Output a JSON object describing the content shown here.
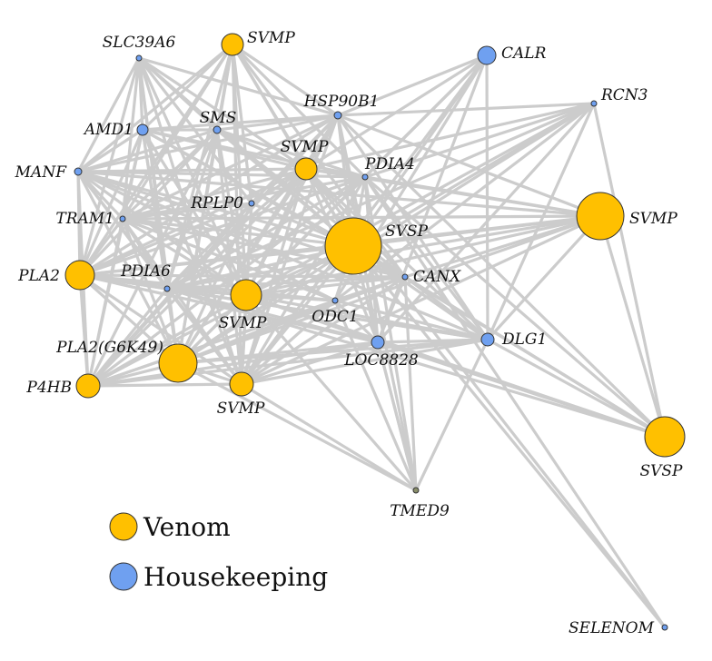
{
  "colors": {
    "venom": "#ffc000",
    "housekeeping": "#6fa0f0",
    "other": "#8a8f6a",
    "edge": "#cccccc"
  },
  "legend": [
    {
      "label": "Venom",
      "group": "venom"
    },
    {
      "label": "Housekeeping",
      "group": "housekeeping"
    }
  ],
  "nodes": [
    {
      "id": "SLC39A6",
      "label": "SLC39A6",
      "group": "housekeeping"
    },
    {
      "id": "SVMP_top",
      "label": "SVMP",
      "group": "venom"
    },
    {
      "id": "CALR",
      "label": "CALR",
      "group": "housekeeping"
    },
    {
      "id": "RCN3",
      "label": "RCN3",
      "group": "housekeeping"
    },
    {
      "id": "HSP90B1",
      "label": "HSP90B1",
      "group": "housekeeping"
    },
    {
      "id": "AMD1",
      "label": "AMD1",
      "group": "housekeeping"
    },
    {
      "id": "SMS",
      "label": "SMS",
      "group": "housekeeping"
    },
    {
      "id": "SVMP_mid",
      "label": "SVMP",
      "group": "venom"
    },
    {
      "id": "PDIA4",
      "label": "PDIA4",
      "group": "housekeeping"
    },
    {
      "id": "MANF",
      "label": "MANF",
      "group": "housekeeping"
    },
    {
      "id": "RPLP0",
      "label": "RPLP0",
      "group": "housekeeping"
    },
    {
      "id": "TRAM1",
      "label": "TRAM1",
      "group": "housekeeping"
    },
    {
      "id": "SVSP_big",
      "label": "SVSP",
      "group": "venom"
    },
    {
      "id": "SVMP_right",
      "label": "SVMP",
      "group": "venom"
    },
    {
      "id": "PLA2",
      "label": "PLA2",
      "group": "venom"
    },
    {
      "id": "PDIA6",
      "label": "PDIA6",
      "group": "housekeeping"
    },
    {
      "id": "CANX",
      "label": "CANX",
      "group": "housekeeping"
    },
    {
      "id": "SVMP_center",
      "label": "SVMP",
      "group": "venom"
    },
    {
      "id": "ODC1",
      "label": "ODC1",
      "group": "housekeeping"
    },
    {
      "id": "PLA2G6K49",
      "label": "PLA2(G6K49)",
      "group": "venom"
    },
    {
      "id": "LOC8828",
      "label": "LOC8828",
      "group": "housekeeping"
    },
    {
      "id": "DLG1",
      "label": "DLG1",
      "group": "housekeeping"
    },
    {
      "id": "P4HB",
      "label": "P4HB",
      "group": "venom"
    },
    {
      "id": "SVMP_low",
      "label": "SVMP",
      "group": "venom"
    },
    {
      "id": "SVSP_right",
      "label": "SVSP",
      "group": "venom"
    },
    {
      "id": "TMED9",
      "label": "TMED9",
      "group": "other"
    },
    {
      "id": "SELENOM",
      "label": "SELENOM",
      "group": "housekeeping"
    }
  ],
  "edges": [
    [
      "SLC39A6",
      "AMD1"
    ],
    [
      "SLC39A6",
      "SMS"
    ],
    [
      "SLC39A6",
      "SVMP_mid"
    ],
    [
      "SLC39A6",
      "MANF"
    ],
    [
      "SLC39A6",
      "TRAM1"
    ],
    [
      "SLC39A6",
      "PLA2"
    ],
    [
      "SLC39A6",
      "PDIA6"
    ],
    [
      "SLC39A6",
      "SVMP_center"
    ],
    [
      "SLC39A6",
      "SVSP_big"
    ],
    [
      "SLC39A6",
      "HSP90B1"
    ],
    [
      "SLC39A6",
      "PLA2G6K49"
    ],
    [
      "SLC39A6",
      "RPLP0"
    ],
    [
      "SLC39A6",
      "SVMP_low"
    ],
    [
      "SVMP_top",
      "AMD1"
    ],
    [
      "SVMP_top",
      "SMS"
    ],
    [
      "SVMP_top",
      "SVMP_mid"
    ],
    [
      "SVMP_top",
      "MANF"
    ],
    [
      "SVMP_top",
      "TRAM1"
    ],
    [
      "SVMP_top",
      "PLA2"
    ],
    [
      "SVMP_top",
      "PDIA6"
    ],
    [
      "SVMP_top",
      "SVMP_center"
    ],
    [
      "SVMP_top",
      "SVSP_big"
    ],
    [
      "SVMP_top",
      "HSP90B1"
    ],
    [
      "SVMP_top",
      "RPLP0"
    ],
    [
      "SVMP_top",
      "PDIA4"
    ],
    [
      "SVMP_top",
      "PLA2G6K49"
    ],
    [
      "SVMP_top",
      "SVMP_low"
    ],
    [
      "SVMP_top",
      "CANX"
    ],
    [
      "CALR",
      "SVMP_mid"
    ],
    [
      "CALR",
      "SVSP_big"
    ],
    [
      "CALR",
      "PDIA4"
    ],
    [
      "CALR",
      "DLG1"
    ],
    [
      "CALR",
      "SVMP_center"
    ],
    [
      "CALR",
      "PLA2G6K49"
    ],
    [
      "CALR",
      "SVMP_low"
    ],
    [
      "CALR",
      "HSP90B1"
    ],
    [
      "CALR",
      "LOC8828"
    ],
    [
      "CALR",
      "ODC1"
    ],
    [
      "RCN3",
      "SVSP_big"
    ],
    [
      "RCN3",
      "SVMP_mid"
    ],
    [
      "RCN3",
      "PDIA4"
    ],
    [
      "RCN3",
      "DLG1"
    ],
    [
      "RCN3",
      "SVMP_center"
    ],
    [
      "RCN3",
      "PDIA6"
    ],
    [
      "RCN3",
      "HSP90B1"
    ],
    [
      "RCN3",
      "PLA2G6K49"
    ],
    [
      "RCN3",
      "ODC1"
    ],
    [
      "RCN3",
      "LOC8828"
    ],
    [
      "HSP90B1",
      "AMD1"
    ],
    [
      "HSP90B1",
      "SMS"
    ],
    [
      "HSP90B1",
      "SVMP_mid"
    ],
    [
      "HSP90B1",
      "MANF"
    ],
    [
      "HSP90B1",
      "TRAM1"
    ],
    [
      "HSP90B1",
      "PLA2"
    ],
    [
      "HSP90B1",
      "SVSP_big"
    ],
    [
      "HSP90B1",
      "SVMP_center"
    ],
    [
      "HSP90B1",
      "PLA2G6K49"
    ],
    [
      "HSP90B1",
      "PDIA6"
    ],
    [
      "HSP90B1",
      "SVMP_low"
    ],
    [
      "HSP90B1",
      "P4HB"
    ],
    [
      "HSP90B1",
      "SVMP_right"
    ],
    [
      "HSP90B1",
      "LOC8828"
    ],
    [
      "HSP90B1",
      "DLG1"
    ],
    [
      "HSP90B1",
      "TMED9"
    ],
    [
      "AMD1",
      "SMS"
    ],
    [
      "AMD1",
      "SVMP_mid"
    ],
    [
      "AMD1",
      "MANF"
    ],
    [
      "AMD1",
      "TRAM1"
    ],
    [
      "AMD1",
      "PLA2"
    ],
    [
      "AMD1",
      "SVSP_big"
    ],
    [
      "AMD1",
      "SVMP_center"
    ],
    [
      "AMD1",
      "PLA2G6K49"
    ],
    [
      "AMD1",
      "PDIA6"
    ],
    [
      "AMD1",
      "SVMP_low"
    ],
    [
      "AMD1",
      "P4HB"
    ],
    [
      "AMD1",
      "PDIA4"
    ],
    [
      "AMD1",
      "CANX"
    ],
    [
      "SMS",
      "SVMP_mid"
    ],
    [
      "SMS",
      "MANF"
    ],
    [
      "SMS",
      "TRAM1"
    ],
    [
      "SMS",
      "PLA2"
    ],
    [
      "SMS",
      "SVSP_big"
    ],
    [
      "SMS",
      "SVMP_center"
    ],
    [
      "SMS",
      "PLA2G6K49"
    ],
    [
      "SMS",
      "SVMP_low"
    ],
    [
      "SMS",
      "PDIA4"
    ],
    [
      "SMS",
      "PDIA6"
    ],
    [
      "SMS",
      "P4HB"
    ],
    [
      "SMS",
      "CANX"
    ],
    [
      "SVMP_mid",
      "MANF"
    ],
    [
      "SVMP_mid",
      "TRAM1"
    ],
    [
      "SVMP_mid",
      "PLA2"
    ],
    [
      "SVMP_mid",
      "SVSP_big"
    ],
    [
      "SVMP_mid",
      "SVMP_center"
    ],
    [
      "SVMP_mid",
      "PLA2G6K49"
    ],
    [
      "SVMP_mid",
      "SVMP_low"
    ],
    [
      "SVMP_mid",
      "PDIA6"
    ],
    [
      "SVMP_mid",
      "P4HB"
    ],
    [
      "SVMP_mid",
      "SVMP_right"
    ],
    [
      "SVMP_mid",
      "DLG1"
    ],
    [
      "SVMP_mid",
      "PDIA4"
    ],
    [
      "SVMP_mid",
      "RPLP0"
    ],
    [
      "SVMP_mid",
      "CANX"
    ],
    [
      "SVMP_mid",
      "LOC8828"
    ],
    [
      "PDIA4",
      "MANF"
    ],
    [
      "PDIA4",
      "TRAM1"
    ],
    [
      "PDIA4",
      "PLA2"
    ],
    [
      "PDIA4",
      "SVSP_big"
    ],
    [
      "PDIA4",
      "SVMP_center"
    ],
    [
      "PDIA4",
      "PLA2G6K49"
    ],
    [
      "PDIA4",
      "SVMP_low"
    ],
    [
      "PDIA4",
      "P4HB"
    ],
    [
      "PDIA4",
      "SVMP_right"
    ],
    [
      "PDIA4",
      "DLG1"
    ],
    [
      "PDIA4",
      "PDIA6"
    ],
    [
      "PDIA4",
      "LOC8828"
    ],
    [
      "MANF",
      "TRAM1"
    ],
    [
      "MANF",
      "PLA2"
    ],
    [
      "MANF",
      "SVSP_big"
    ],
    [
      "MANF",
      "SVMP_center"
    ],
    [
      "MANF",
      "PLA2G6K49"
    ],
    [
      "MANF",
      "PDIA6"
    ],
    [
      "MANF",
      "SVMP_low"
    ],
    [
      "MANF",
      "P4HB"
    ],
    [
      "MANF",
      "CANX"
    ],
    [
      "MANF",
      "DLG1"
    ],
    [
      "MANF",
      "SVMP_right"
    ],
    [
      "MANF",
      "ODC1"
    ],
    [
      "RPLP0",
      "PLA2"
    ],
    [
      "RPLP0",
      "SVSP_big"
    ],
    [
      "RPLP0",
      "SVMP_center"
    ],
    [
      "RPLP0",
      "PLA2G6K49"
    ],
    [
      "RPLP0",
      "SVMP_low"
    ],
    [
      "RPLP0",
      "TRAM1"
    ],
    [
      "RPLP0",
      "P4HB"
    ],
    [
      "TRAM1",
      "PLA2"
    ],
    [
      "TRAM1",
      "SVSP_big"
    ],
    [
      "TRAM1",
      "SVMP_center"
    ],
    [
      "TRAM1",
      "PLA2G6K49"
    ],
    [
      "TRAM1",
      "PDIA6"
    ],
    [
      "TRAM1",
      "SVMP_low"
    ],
    [
      "TRAM1",
      "P4HB"
    ],
    [
      "TRAM1",
      "CANX"
    ],
    [
      "TRAM1",
      "SVMP_right"
    ],
    [
      "TRAM1",
      "ODC1"
    ],
    [
      "SVSP_big",
      "PLA2"
    ],
    [
      "SVSP_big",
      "SVMP_center"
    ],
    [
      "SVSP_big",
      "PLA2G6K49"
    ],
    [
      "SVSP_big",
      "PDIA6"
    ],
    [
      "SVSP_big",
      "SVMP_low"
    ],
    [
      "SVSP_big",
      "P4HB"
    ],
    [
      "SVSP_big",
      "DLG1"
    ],
    [
      "SVSP_big",
      "SVMP_right"
    ],
    [
      "SVSP_big",
      "SVSP_right"
    ],
    [
      "SVSP_big",
      "CANX"
    ],
    [
      "SVSP_big",
      "LOC8828"
    ],
    [
      "SVSP_big",
      "ODC1"
    ],
    [
      "SVSP_big",
      "TMED9"
    ],
    [
      "SVSP_big",
      "SELENOM"
    ],
    [
      "SVMP_right",
      "PLA2"
    ],
    [
      "SVMP_right",
      "SVMP_center"
    ],
    [
      "SVMP_right",
      "PLA2G6K49"
    ],
    [
      "SVMP_right",
      "DLG1"
    ],
    [
      "SVMP_right",
      "CANX"
    ],
    [
      "SVMP_right",
      "SVMP_low"
    ],
    [
      "SVMP_right",
      "PDIA6"
    ],
    [
      "PLA2",
      "SVMP_center"
    ],
    [
      "PLA2",
      "PLA2G6K49"
    ],
    [
      "PLA2",
      "PDIA6"
    ],
    [
      "PLA2",
      "SVMP_low"
    ],
    [
      "PLA2",
      "P4HB"
    ],
    [
      "PLA2",
      "CANX"
    ],
    [
      "PLA2",
      "DLG1"
    ],
    [
      "PLA2",
      "ODC1"
    ],
    [
      "PLA2",
      "LOC8828"
    ],
    [
      "PDIA6",
      "SVMP_center"
    ],
    [
      "PDIA6",
      "PLA2G6K49"
    ],
    [
      "PDIA6",
      "SVMP_low"
    ],
    [
      "PDIA6",
      "P4HB"
    ],
    [
      "PDIA6",
      "CANX"
    ],
    [
      "PDIA6",
      "ODC1"
    ],
    [
      "PDIA6",
      "DLG1"
    ],
    [
      "PDIA6",
      "LOC8828"
    ],
    [
      "PDIA6",
      "SVSP_right"
    ],
    [
      "CANX",
      "SVMP_center"
    ],
    [
      "CANX",
      "PLA2G6K49"
    ],
    [
      "CANX",
      "SVMP_low"
    ],
    [
      "CANX",
      "DLG1"
    ],
    [
      "CANX",
      "LOC8828"
    ],
    [
      "CANX",
      "TMED9"
    ],
    [
      "CANX",
      "ODC1"
    ],
    [
      "CANX",
      "P4HB"
    ],
    [
      "SVMP_center",
      "PLA2G6K49"
    ],
    [
      "SVMP_center",
      "SVMP_low"
    ],
    [
      "SVMP_center",
      "P4HB"
    ],
    [
      "SVMP_center",
      "DLG1"
    ],
    [
      "SVMP_center",
      "LOC8828"
    ],
    [
      "SVMP_center",
      "ODC1"
    ],
    [
      "SVMP_center",
      "SVSP_right"
    ],
    [
      "SVMP_center",
      "TMED9"
    ],
    [
      "ODC1",
      "PLA2G6K49"
    ],
    [
      "ODC1",
      "SVMP_low"
    ],
    [
      "ODC1",
      "LOC8828"
    ],
    [
      "ODC1",
      "DLG1"
    ],
    [
      "ODC1",
      "TMED9"
    ],
    [
      "ODC1",
      "P4HB"
    ],
    [
      "PLA2G6K49",
      "SVMP_low"
    ],
    [
      "PLA2G6K49",
      "P4HB"
    ],
    [
      "PLA2G6K49",
      "LOC8828"
    ],
    [
      "PLA2G6K49",
      "DLG1"
    ],
    [
      "PLA2G6K49",
      "TMED9"
    ],
    [
      "LOC8828",
      "SVMP_low"
    ],
    [
      "LOC8828",
      "DLG1"
    ],
    [
      "LOC8828",
      "TMED9"
    ],
    [
      "LOC8828",
      "P4HB"
    ],
    [
      "LOC8828",
      "SVSP_right"
    ],
    [
      "DLG1",
      "SVSP_right"
    ],
    [
      "DLG1",
      "SVMP_low"
    ],
    [
      "DLG1",
      "TMED9"
    ],
    [
      "DLG1",
      "P4HB"
    ],
    [
      "P4HB",
      "SVMP_low"
    ],
    [
      "SVMP_low",
      "TMED9"
    ],
    [
      "PDIA4",
      "TMED9"
    ],
    [
      "PDIA4",
      "SVSP_right"
    ],
    [
      "RCN3",
      "SVSP_right"
    ],
    [
      "HSP90B1",
      "SVSP_right"
    ],
    [
      "SVMP_mid",
      "SELENOM"
    ],
    [
      "PDIA4",
      "SELENOM"
    ],
    [
      "CANX",
      "SVSP_right"
    ],
    [
      "SVMP_right",
      "SVSP_right"
    ]
  ]
}
